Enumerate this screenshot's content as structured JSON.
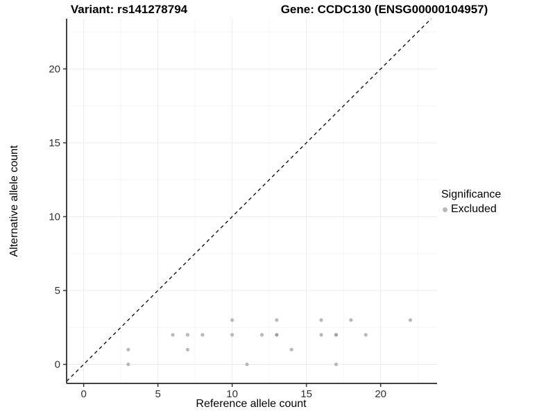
{
  "chart_data": {
    "type": "scatter",
    "title_left": "Variant: rs141278794",
    "title_right": "Gene: CCDC130 (ENSG00000104957)",
    "xlabel": "Reference allele count",
    "ylabel": "Alternative allele count",
    "xlim": [
      -1.15,
      23.8
    ],
    "ylim": [
      -1.29,
      23.4
    ],
    "xticks": [
      0,
      5,
      10,
      15,
      20
    ],
    "yticks": [
      0,
      5,
      10,
      15,
      20
    ],
    "x_minor_gridlines": [
      2.5,
      7.5,
      12.5,
      17.5,
      22.5
    ],
    "y_minor_gridlines": [
      2.5,
      7.5,
      12.5,
      17.5,
      22.5
    ],
    "grid": true,
    "legend_position": "right",
    "identity_line": {
      "equation": "y = x",
      "style": "dashed",
      "color": "#111111"
    },
    "legend": {
      "title": "Significance",
      "items": [
        {
          "label": "Excluded",
          "color": "#b9b9b9"
        }
      ]
    },
    "colors": {
      "point": "#b9b9b9",
      "point_overlap": "#a0a0a0",
      "grid_major": "#ebebeb",
      "grid_minor": "#f5f5f5",
      "axis_line": "#424242",
      "tick_mark": "#333333",
      "tick_label": "#303030"
    },
    "series": [
      {
        "name": "Excluded",
        "points": [
          {
            "x": 3,
            "y": 0,
            "n": 1
          },
          {
            "x": 11,
            "y": 0,
            "n": 1
          },
          {
            "x": 17,
            "y": 0,
            "n": 1
          },
          {
            "x": 3,
            "y": 1,
            "n": 1
          },
          {
            "x": 7,
            "y": 1,
            "n": 1
          },
          {
            "x": 14,
            "y": 1,
            "n": 1
          },
          {
            "x": 6,
            "y": 2,
            "n": 1
          },
          {
            "x": 7,
            "y": 2,
            "n": 1
          },
          {
            "x": 8,
            "y": 2,
            "n": 1
          },
          {
            "x": 10,
            "y": 2,
            "n": 1
          },
          {
            "x": 12,
            "y": 2,
            "n": 1
          },
          {
            "x": 13,
            "y": 2,
            "n": 2
          },
          {
            "x": 16,
            "y": 2,
            "n": 1
          },
          {
            "x": 17,
            "y": 2,
            "n": 2
          },
          {
            "x": 19,
            "y": 2,
            "n": 1
          },
          {
            "x": 10,
            "y": 3,
            "n": 1
          },
          {
            "x": 13,
            "y": 3,
            "n": 1
          },
          {
            "x": 16,
            "y": 3,
            "n": 1
          },
          {
            "x": 18,
            "y": 3,
            "n": 1
          },
          {
            "x": 22,
            "y": 3,
            "n": 1
          }
        ]
      }
    ]
  }
}
